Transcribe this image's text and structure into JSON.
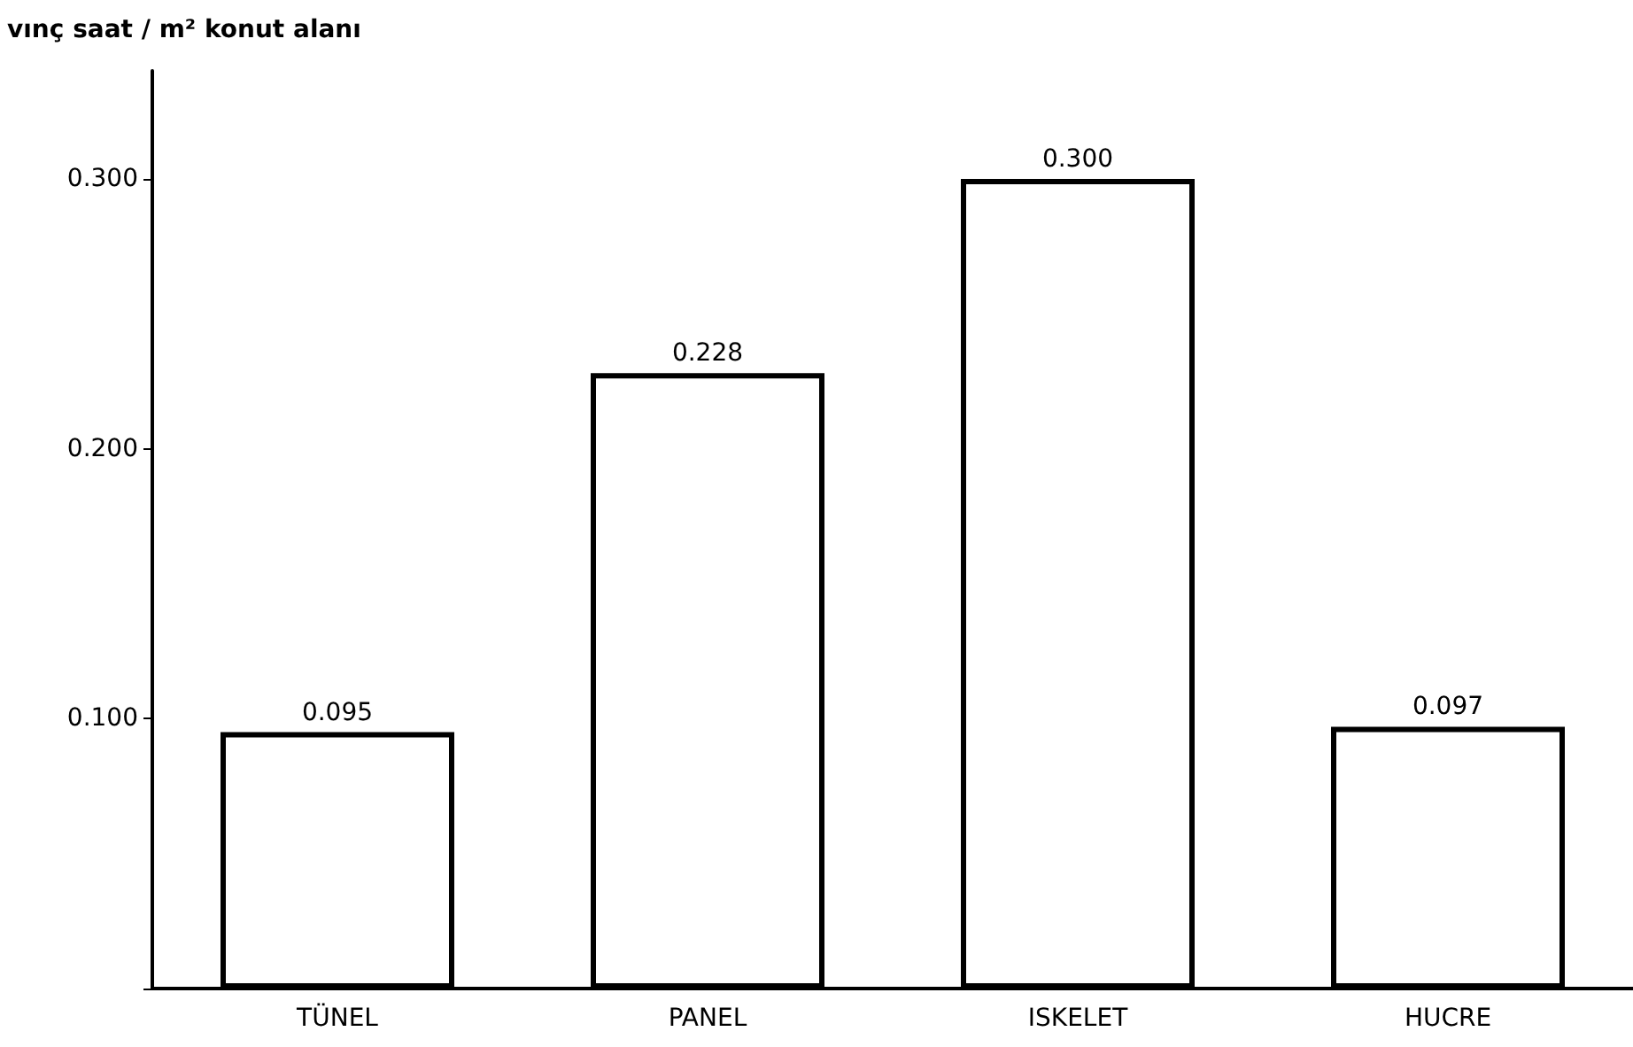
{
  "chart_data": {
    "type": "bar",
    "ylabel": "vınç saat / m² konut alanı",
    "categories": [
      "TÜNEL",
      "PANEL",
      "ISKELET",
      "HUCRE"
    ],
    "values": [
      0.095,
      0.228,
      0.3,
      0.097
    ],
    "value_labels": [
      "0.095",
      "0.228",
      "0.300",
      "0.097"
    ],
    "color": "#ffffff",
    "ylim": [
      0,
      0.34
    ],
    "yticks": [
      {
        "value": 0,
        "label": null
      },
      {
        "value": 0.1,
        "label": "0.100"
      },
      {
        "value": 0.2,
        "label": "0.200"
      },
      {
        "value": 0.3,
        "label": "0.300"
      }
    ],
    "grid": false
  }
}
